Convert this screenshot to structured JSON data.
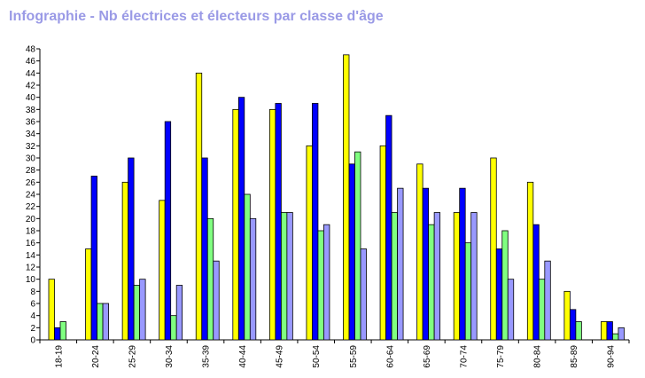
{
  "chart_data": {
    "type": "bar",
    "title": "Infographie - Nb électrices et électeurs par classe d'âge",
    "xlabel": "",
    "ylabel": "",
    "ylim": [
      0,
      48
    ],
    "y_ticks": [
      0,
      2,
      4,
      6,
      8,
      10,
      12,
      14,
      16,
      18,
      20,
      22,
      24,
      26,
      28,
      30,
      32,
      34,
      36,
      38,
      40,
      42,
      44,
      46,
      48
    ],
    "grid": false,
    "legend": "none",
    "categories": [
      "18-19",
      "20-24",
      "25-29",
      "30-34",
      "35-39",
      "40-44",
      "45-49",
      "50-54",
      "55-59",
      "60-64",
      "65-69",
      "70-74",
      "75-79",
      "80-84",
      "85-89",
      "90-94"
    ],
    "series": [
      {
        "color": "#ffff00",
        "values": [
          10,
          15,
          26,
          23,
          44,
          38,
          38,
          32,
          47,
          32,
          29,
          21,
          30,
          26,
          8,
          3
        ]
      },
      {
        "color": "#0000ff",
        "values": [
          2,
          27,
          30,
          36,
          30,
          40,
          39,
          39,
          29,
          37,
          25,
          25,
          15,
          19,
          5,
          3
        ]
      },
      {
        "color": "#80ff80",
        "values": [
          3,
          6,
          9,
          4,
          20,
          24,
          21,
          18,
          31,
          21,
          19,
          16,
          18,
          10,
          3,
          1
        ]
      },
      {
        "color": "#9999ff",
        "values": [
          0,
          6,
          10,
          9,
          13,
          20,
          21,
          19,
          15,
          25,
          21,
          21,
          10,
          13,
          0,
          2
        ]
      }
    ]
  }
}
